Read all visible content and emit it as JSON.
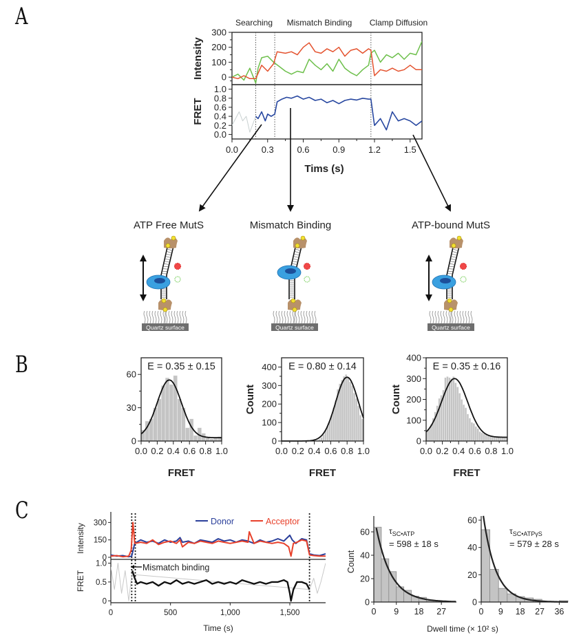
{
  "panels": {
    "A": {
      "letter": "A",
      "segment_labels": [
        "Searching",
        "Mismatch Binding",
        "Clamp Diffusion"
      ],
      "intensity_ylabel": "Intensity",
      "fret_ylabel": "FRET",
      "xlabel": "Tims (s)",
      "state_labels": [
        "ATP Free MutS",
        "Mismatch Binding",
        "ATP-bound MutS"
      ],
      "surface_label": "Quartz surface"
    },
    "B": {
      "letter": "B",
      "ylabel": "Count",
      "xlabel": "FRET"
    },
    "C": {
      "letter": "C",
      "intensity_ylabel": "Intensity",
      "fret_ylabel": "FRET",
      "xlabel": "Time (s)",
      "legend": [
        "Donor",
        "Acceptor"
      ],
      "annotation": "Mismatch binding",
      "dwell_ylabel": "Count",
      "dwell_xlabel": "Dwell time (× 10² s)"
    }
  },
  "colors": {
    "donor_green": "#6cbf4a",
    "acceptor_red": "#e4522e",
    "fret_blue": "#2747a0",
    "donor_blue_C": "#2a3f9a",
    "acceptor_red_C": "#e8402a",
    "bar_gray": "#c4c4c4",
    "mutS_blue": "#3aa0e0",
    "biotin_yellow": "#f2e030",
    "streptavidin_tan": "#b8916a",
    "surface_gray": "#6e6e6e"
  },
  "chart_data": [
    {
      "id": "A-intensity",
      "type": "line",
      "title": "",
      "xlabel": "",
      "ylabel": "Intensity",
      "xlim": [
        0.0,
        1.6
      ],
      "ylim": [
        -50,
        300
      ],
      "yticks": [
        0,
        100,
        200,
        300
      ],
      "segment_boundaries": [
        0.2,
        0.36,
        1.17
      ],
      "segment_labels": [
        "Searching",
        "Mismatch Binding",
        "Clamp Diffusion"
      ],
      "series": [
        {
          "name": "Donor (green)",
          "x": [
            0.0,
            0.05,
            0.1,
            0.15,
            0.2,
            0.22,
            0.25,
            0.3,
            0.35,
            0.4,
            0.45,
            0.5,
            0.55,
            0.6,
            0.65,
            0.7,
            0.75,
            0.8,
            0.85,
            0.9,
            0.95,
            1.0,
            1.05,
            1.1,
            1.15,
            1.17,
            1.2,
            1.25,
            1.3,
            1.35,
            1.4,
            1.45,
            1.5,
            1.55,
            1.6
          ],
          "y": [
            0,
            20,
            -20,
            60,
            -40,
            60,
            130,
            140,
            100,
            70,
            40,
            20,
            40,
            30,
            120,
            80,
            50,
            90,
            40,
            120,
            60,
            30,
            10,
            50,
            80,
            160,
            180,
            100,
            150,
            130,
            160,
            120,
            160,
            150,
            240
          ]
        },
        {
          "name": "Acceptor (red)",
          "x": [
            0.0,
            0.05,
            0.1,
            0.15,
            0.2,
            0.25,
            0.3,
            0.35,
            0.38,
            0.45,
            0.5,
            0.55,
            0.6,
            0.65,
            0.7,
            0.75,
            0.8,
            0.85,
            0.9,
            0.95,
            1.0,
            1.05,
            1.1,
            1.15,
            1.17,
            1.2,
            1.25,
            1.3,
            1.35,
            1.4,
            1.45,
            1.5,
            1.55,
            1.6
          ],
          "y": [
            0,
            -10,
            10,
            -10,
            -10,
            80,
            40,
            90,
            170,
            160,
            170,
            150,
            200,
            230,
            170,
            160,
            190,
            170,
            200,
            140,
            180,
            190,
            160,
            190,
            180,
            10,
            50,
            40,
            60,
            40,
            50,
            80,
            50,
            50
          ]
        }
      ]
    },
    {
      "id": "A-fret",
      "type": "line",
      "xlabel": "Tims (s)",
      "ylabel": "FRET",
      "xlim": [
        0.0,
        1.6
      ],
      "ylim": [
        -0.1,
        1.1
      ],
      "xticks": [
        0.0,
        0.3,
        0.6,
        0.9,
        1.2,
        1.5
      ],
      "yticks": [
        0.0,
        0.2,
        0.4,
        0.6,
        0.8,
        1.0
      ],
      "series": [
        {
          "name": "FRET (faint, pre-binding)",
          "x": [
            0.0,
            0.03,
            0.06,
            0.09,
            0.12,
            0.15,
            0.2
          ],
          "y": [
            0.2,
            0.35,
            0.5,
            0.3,
            0.4,
            0.05,
            0.4
          ]
        },
        {
          "name": "FRET",
          "x": [
            0.2,
            0.22,
            0.25,
            0.28,
            0.3,
            0.33,
            0.36,
            0.38,
            0.42,
            0.46,
            0.5,
            0.55,
            0.6,
            0.65,
            0.7,
            0.75,
            0.8,
            0.85,
            0.9,
            0.95,
            1.0,
            1.05,
            1.1,
            1.15,
            1.17,
            1.2,
            1.25,
            1.3,
            1.35,
            1.4,
            1.45,
            1.5,
            1.55,
            1.6
          ],
          "y": [
            0.4,
            0.35,
            0.5,
            0.3,
            0.45,
            0.4,
            0.45,
            0.72,
            0.78,
            0.82,
            0.8,
            0.85,
            0.78,
            0.82,
            0.75,
            0.78,
            0.7,
            0.75,
            0.68,
            0.75,
            0.78,
            0.76,
            0.8,
            0.78,
            0.78,
            0.2,
            0.35,
            0.1,
            0.5,
            0.3,
            0.35,
            0.3,
            0.2,
            0.3
          ]
        }
      ]
    },
    {
      "id": "B-1",
      "type": "bar",
      "title": "E = 0.35 ± 0.15",
      "xlabel": "FRET",
      "ylabel": "",
      "xlim": [
        0.0,
        1.0
      ],
      "ylim": [
        0,
        75
      ],
      "xticks": [
        0.0,
        0.2,
        0.4,
        0.6,
        0.8,
        1.0
      ],
      "yticks": [
        0,
        30,
        60
      ],
      "bin_width": 0.05,
      "categories": [
        0.025,
        0.075,
        0.125,
        0.175,
        0.225,
        0.275,
        0.325,
        0.375,
        0.425,
        0.475,
        0.525,
        0.575,
        0.625,
        0.675,
        0.725,
        0.775,
        0.825,
        0.875,
        0.925,
        0.975
      ],
      "values": [
        10,
        18,
        20,
        30,
        38,
        50,
        57,
        51,
        59,
        38,
        30,
        12,
        20,
        5,
        12,
        7,
        3,
        2,
        3,
        4
      ],
      "fit": {
        "type": "gaussian",
        "center": 0.35,
        "sigma": 0.15,
        "amplitude": 52,
        "baseline": 3
      }
    },
    {
      "id": "B-2",
      "type": "bar",
      "title": "E = 0.80 ± 0.14",
      "xlabel": "FRET",
      "ylabel": "Count",
      "xlim": [
        0.0,
        1.0
      ],
      "ylim": [
        0,
        450
      ],
      "xticks": [
        0.0,
        0.2,
        0.4,
        0.6,
        0.8,
        1.0
      ],
      "yticks": [
        0,
        100,
        200,
        300,
        400
      ],
      "bin_width": 0.025,
      "categories": [
        0.4125,
        0.4375,
        0.4625,
        0.4875,
        0.5125,
        0.5375,
        0.5625,
        0.5875,
        0.6125,
        0.6375,
        0.6625,
        0.6875,
        0.7125,
        0.7375,
        0.7625,
        0.7875,
        0.8125,
        0.8375,
        0.8625,
        0.8875,
        0.9125,
        0.9375,
        0.9625,
        0.9875
      ],
      "values": [
        3,
        5,
        10,
        20,
        35,
        55,
        80,
        105,
        140,
        180,
        220,
        280,
        310,
        330,
        350,
        360,
        345,
        320,
        300,
        260,
        230,
        190,
        140,
        120
      ],
      "fit": {
        "type": "gaussian",
        "center": 0.8,
        "sigma": 0.14,
        "amplitude": 345,
        "baseline": 0
      }
    },
    {
      "id": "B-3",
      "type": "bar",
      "title": "E = 0.35 ± 0.16",
      "xlabel": "FRET",
      "ylabel": "Count",
      "xlim": [
        0.0,
        1.0
      ],
      "ylim": [
        0,
        400
      ],
      "xticks": [
        0.0,
        0.2,
        0.4,
        0.6,
        0.8,
        1.0
      ],
      "yticks": [
        0,
        100,
        200,
        300,
        400
      ],
      "bin_width": 0.025,
      "categories": [
        0.0125,
        0.0375,
        0.0625,
        0.0875,
        0.1125,
        0.1375,
        0.1625,
        0.1875,
        0.2125,
        0.2375,
        0.2625,
        0.2875,
        0.3125,
        0.3375,
        0.3625,
        0.3875,
        0.4125,
        0.4375,
        0.4625,
        0.4875,
        0.5125,
        0.5375,
        0.5625,
        0.5875,
        0.6125,
        0.6375,
        0.6625,
        0.6875,
        0.7125,
        0.7375,
        0.7625,
        0.7875,
        0.8125,
        0.8375,
        0.8625,
        0.8875,
        0.9125,
        0.9375,
        0.9625,
        0.9875
      ],
      "values": [
        50,
        60,
        80,
        110,
        140,
        170,
        205,
        220,
        245,
        305,
        310,
        305,
        300,
        310,
        280,
        260,
        230,
        200,
        175,
        160,
        130,
        110,
        90,
        85,
        70,
        60,
        45,
        40,
        35,
        30,
        25,
        22,
        20,
        18,
        18,
        18,
        17,
        17,
        16,
        16
      ],
      "fit": {
        "type": "gaussian",
        "center": 0.35,
        "sigma": 0.16,
        "amplitude": 282,
        "baseline": 18
      }
    },
    {
      "id": "C-intensity",
      "type": "line",
      "xlabel": "",
      "ylabel": "Intensity",
      "xlim": [
        0,
        1800
      ],
      "ylim": [
        0,
        320
      ],
      "yticks": [
        0,
        150,
        300
      ],
      "legend": [
        "Donor",
        "Acceptor"
      ],
      "legend_position": "top-right",
      "markers": [
        175,
        205,
        1665
      ],
      "series": [
        {
          "name": "Donor",
          "x": [
            0,
            50,
            100,
            150,
            175,
            200,
            250,
            300,
            350,
            400,
            450,
            500,
            550,
            580,
            600,
            650,
            700,
            750,
            800,
            850,
            900,
            950,
            1000,
            1050,
            1100,
            1150,
            1200,
            1250,
            1300,
            1350,
            1400,
            1450,
            1500,
            1520,
            1550,
            1600,
            1640,
            1665,
            1700,
            1750,
            1800
          ],
          "y": [
            20,
            10,
            15,
            5,
            10,
            120,
            150,
            130,
            140,
            120,
            150,
            130,
            140,
            170,
            130,
            140,
            120,
            150,
            140,
            130,
            160,
            140,
            150,
            130,
            150,
            140,
            120,
            150,
            130,
            140,
            160,
            140,
            190,
            150,
            120,
            160,
            150,
            30,
            20,
            15,
            30
          ]
        },
        {
          "name": "Acceptor",
          "x": [
            0,
            50,
            100,
            150,
            170,
            185,
            200,
            250,
            300,
            350,
            400,
            450,
            500,
            550,
            580,
            600,
            650,
            700,
            750,
            800,
            850,
            900,
            950,
            1000,
            1050,
            1100,
            1150,
            1160,
            1200,
            1250,
            1300,
            1350,
            1400,
            1450,
            1490,
            1510,
            1530,
            1560,
            1600,
            1640,
            1665,
            1700,
            1750,
            1800
          ],
          "y": [
            10,
            15,
            5,
            10,
            60,
            300,
            120,
            130,
            120,
            150,
            110,
            130,
            140,
            120,
            150,
            90,
            130,
            120,
            140,
            130,
            120,
            140,
            130,
            120,
            130,
            140,
            130,
            220,
            120,
            140,
            130,
            120,
            130,
            120,
            90,
            10,
            120,
            130,
            150,
            140,
            20,
            15,
            10,
            10
          ]
        }
      ]
    },
    {
      "id": "C-fret",
      "type": "line",
      "xlabel": "Time (s)",
      "ylabel": "FRET",
      "xlim": [
        0,
        1800
      ],
      "ylim": [
        -0.05,
        1.1
      ],
      "xticks": [
        0,
        500,
        1000,
        1500
      ],
      "xtick_labels": [
        "0",
        "500",
        "1,000",
        "1,500"
      ],
      "yticks": [
        0,
        0.5,
        1.0
      ],
      "annotation": "Mismatch binding",
      "series": [
        {
          "name": "FRET (faint, unbound)",
          "x": [
            0,
            30,
            60,
            90,
            120,
            150,
            175,
            1665,
            1700,
            1730,
            1760,
            1800
          ],
          "y": [
            0.9,
            0.3,
            1.0,
            0.2,
            0.8,
            0.0,
            0.7,
            0.3,
            0.6,
            0.2,
            0.5,
            1.0
          ]
        },
        {
          "name": "FRET",
          "x": [
            180,
            200,
            220,
            250,
            300,
            350,
            400,
            450,
            500,
            550,
            600,
            650,
            700,
            750,
            800,
            850,
            900,
            950,
            1000,
            1050,
            1100,
            1150,
            1200,
            1250,
            1300,
            1350,
            1400,
            1450,
            1480,
            1500,
            1510,
            1530,
            1560,
            1600,
            1640,
            1665
          ],
          "y": [
            0.8,
            0.6,
            0.45,
            0.5,
            0.45,
            0.5,
            0.4,
            0.5,
            0.45,
            0.55,
            0.45,
            0.5,
            0.45,
            0.5,
            0.55,
            0.45,
            0.5,
            0.45,
            0.5,
            0.45,
            0.55,
            0.5,
            0.45,
            0.5,
            0.45,
            0.5,
            0.5,
            0.55,
            0.5,
            0.2,
            0.0,
            0.3,
            0.5,
            0.5,
            0.45,
            0.3
          ]
        }
      ]
    },
    {
      "id": "C-dwell-ATP",
      "type": "bar",
      "title": "τSC•ATP = 598 ± 18 s",
      "xlabel": "Dwell time (× 10² s)",
      "ylabel": "Count",
      "xlim": [
        0,
        33
      ],
      "ylim": [
        0,
        70
      ],
      "xticks": [
        0,
        9,
        18,
        27
      ],
      "yticks": [
        0,
        20,
        40,
        60
      ],
      "bin_width": 3,
      "categories": [
        1.5,
        4.5,
        7.5,
        10.5,
        13.5,
        16.5,
        19.5,
        22.5,
        25.5
      ],
      "values": [
        64,
        37,
        26,
        13,
        10,
        5,
        4,
        1,
        1
      ],
      "fit": {
        "type": "exponential",
        "tau": 5.98,
        "amplitude": 75
      }
    },
    {
      "id": "C-dwell-ATPgS",
      "type": "bar",
      "title": "τSC•ATPγS = 579 ± 28 s",
      "xlabel": "Dwell time (× 10² s)",
      "ylabel": "",
      "xlim": [
        0,
        40
      ],
      "ylim": [
        0,
        60
      ],
      "xticks": [
        0,
        9,
        18,
        27,
        36
      ],
      "yticks": [
        0,
        20,
        40,
        60
      ],
      "bin_width": 4,
      "categories": [
        2,
        6,
        10,
        14,
        18,
        22,
        26,
        30,
        34,
        38
      ],
      "values": [
        53,
        24,
        10,
        6,
        4,
        3,
        2,
        0,
        0,
        1
      ],
      "fit": {
        "type": "exponential",
        "tau": 5.79,
        "amplitude": 75
      }
    }
  ]
}
